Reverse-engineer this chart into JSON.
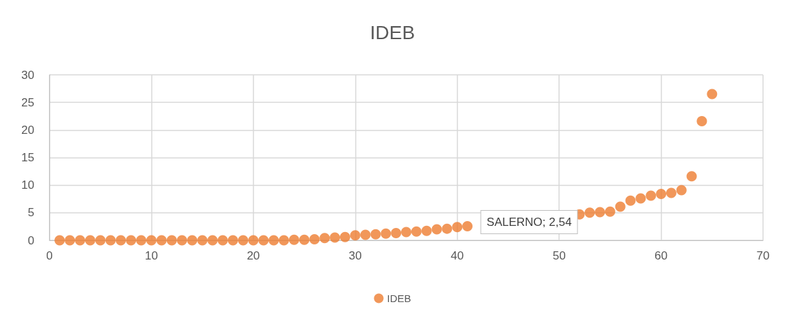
{
  "chart_data": {
    "type": "scatter",
    "title": "IDEB",
    "x": [
      1,
      2,
      3,
      4,
      5,
      6,
      7,
      8,
      9,
      10,
      11,
      12,
      13,
      14,
      15,
      16,
      17,
      18,
      19,
      20,
      21,
      22,
      23,
      24,
      25,
      26,
      27,
      28,
      29,
      30,
      31,
      32,
      33,
      34,
      35,
      36,
      37,
      38,
      39,
      40,
      41,
      52,
      53,
      54,
      55,
      56,
      57,
      58,
      59,
      60,
      61,
      62,
      63,
      64,
      65
    ],
    "series": [
      {
        "name": "IDEB",
        "color": "#ed7d31",
        "values": [
          0,
          0,
          0,
          0,
          0,
          0,
          0,
          0,
          0,
          0,
          0,
          0,
          0,
          0,
          0,
          0,
          0,
          0,
          0,
          0,
          0,
          0,
          0,
          0.1,
          0.1,
          0.2,
          0.4,
          0.5,
          0.6,
          0.9,
          1.0,
          1.1,
          1.2,
          1.3,
          1.5,
          1.6,
          1.7,
          2.0,
          2.1,
          2.4,
          2.54,
          4.7,
          5.0,
          5.1,
          5.2,
          6.1,
          7.2,
          7.6,
          8.1,
          8.4,
          8.6,
          9.1,
          11.6,
          21.6,
          26.5
        ]
      }
    ],
    "annotations": [
      {
        "text": "SALERNO; 2,54",
        "x": 41,
        "y": 2.54
      }
    ],
    "xlim": [
      0,
      70
    ],
    "xticks": [
      0,
      10,
      20,
      30,
      40,
      50,
      60,
      70
    ],
    "ylim": [
      0,
      30
    ],
    "yticks": [
      0,
      5,
      10,
      15,
      20,
      25,
      30
    ],
    "grid": true,
    "legend": "bottom",
    "marker": "circle"
  }
}
